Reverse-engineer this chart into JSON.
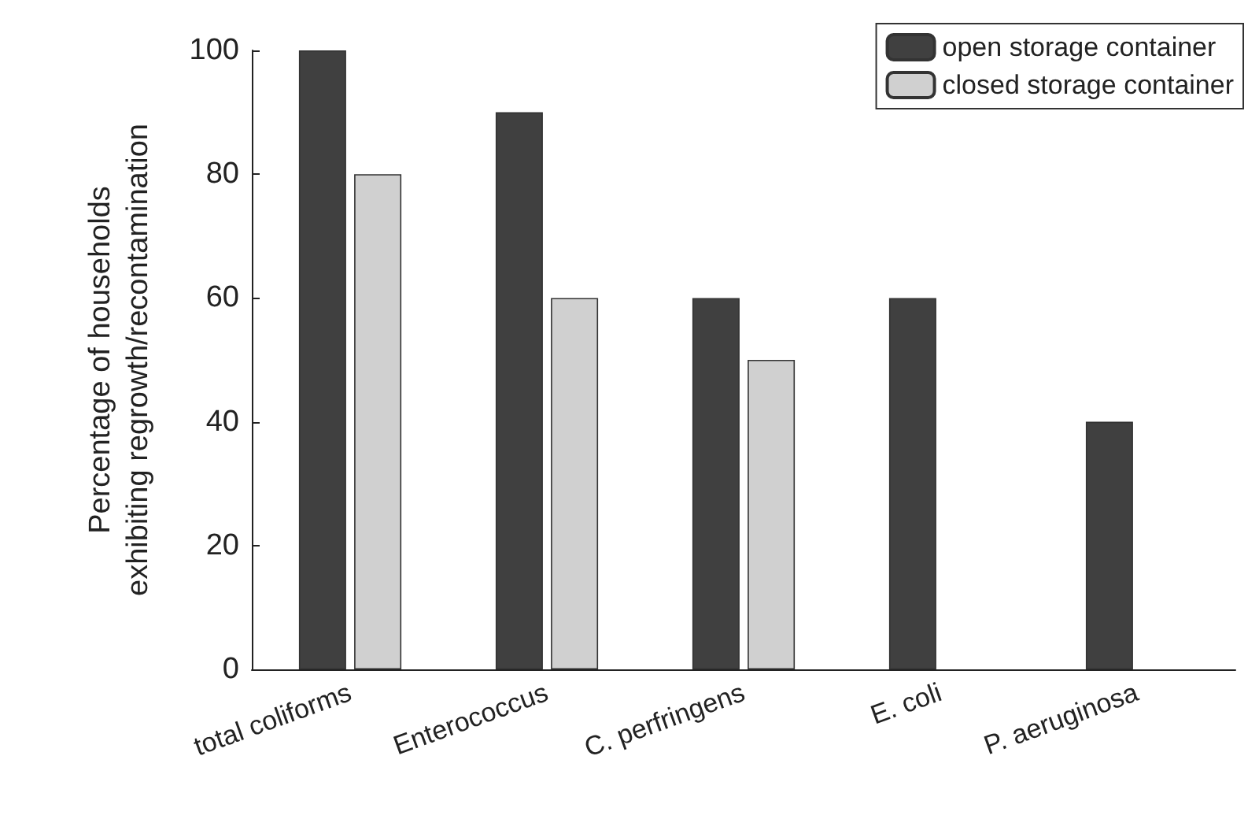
{
  "chart_data": {
    "type": "bar",
    "ylabel": "Percentage of households\nexhibiting regrowth/recontamination",
    "categories": [
      "total coliforms",
      "Enterococcus",
      "C. perfringens",
      "E. coli",
      "P. aeruginosa"
    ],
    "series": [
      {
        "name": "open storage container",
        "color": "#404040",
        "values": [
          100,
          90,
          60,
          60,
          40
        ]
      },
      {
        "name": "closed storage container",
        "color": "#d0d0d0",
        "values": [
          80,
          60,
          50,
          null,
          null
        ]
      }
    ],
    "ylim": [
      0,
      100
    ],
    "yticks": [
      0,
      20,
      40,
      60,
      80,
      100
    ],
    "grid": false,
    "legend": "top right"
  }
}
